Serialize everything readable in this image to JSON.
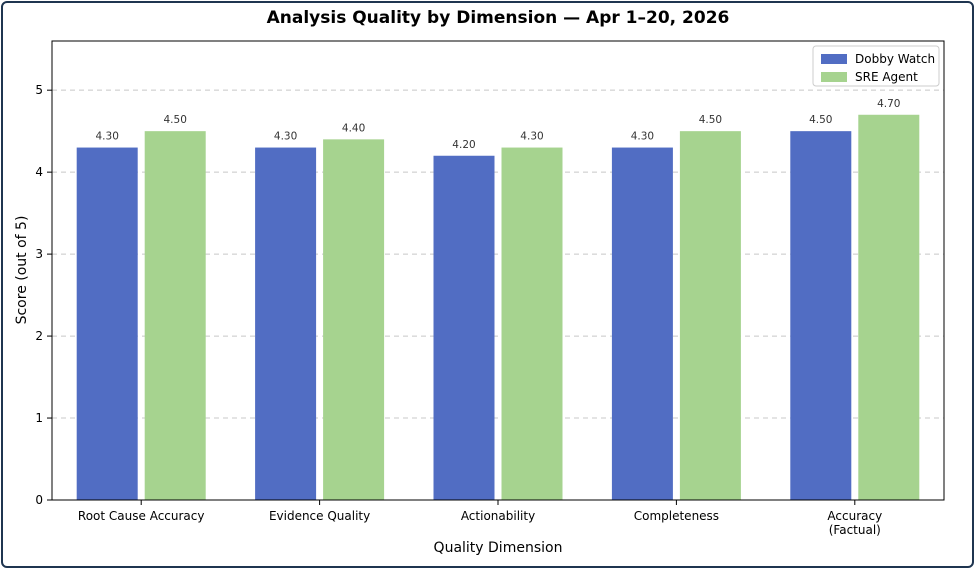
{
  "chart_data": {
    "type": "bar",
    "title": "Analysis Quality by Dimension — Apr 1–20, 2026",
    "xlabel": "Quality Dimension",
    "ylabel": "Score (out of 5)",
    "ylim": [
      0,
      5.6
    ],
    "yticks": [
      0,
      1,
      2,
      3,
      4,
      5
    ],
    "grid": "horizontal dashed",
    "legend_position": "top-right",
    "categories": [
      [
        "Root Cause Accuracy"
      ],
      [
        "Evidence Quality"
      ],
      [
        "Actionability"
      ],
      [
        "Completeness"
      ],
      [
        "Accuracy",
        "(Factual)"
      ]
    ],
    "series": [
      {
        "name": "Dobby Watch",
        "color": "#516dc3",
        "values": [
          4.3,
          4.3,
          4.2,
          4.3,
          4.5
        ],
        "labels": [
          "4.30",
          "4.30",
          "4.20",
          "4.30",
          "4.50"
        ]
      },
      {
        "name": "SRE Agent",
        "color": "#a6d38f",
        "values": [
          4.5,
          4.4,
          4.3,
          4.5,
          4.7
        ],
        "labels": [
          "4.50",
          "4.40",
          "4.30",
          "4.50",
          "4.70"
        ]
      }
    ]
  }
}
